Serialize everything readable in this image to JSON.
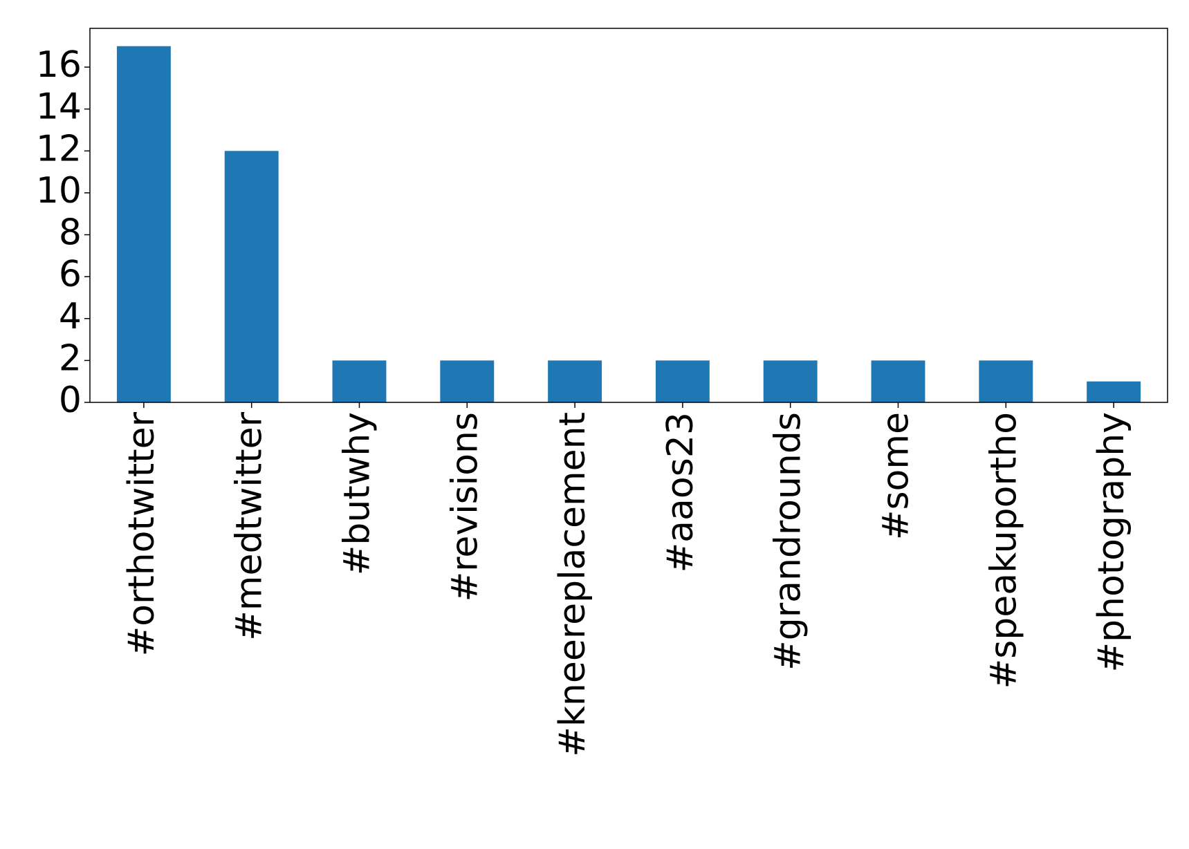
{
  "chart_data": {
    "type": "bar",
    "categories": [
      "#orthotwitter",
      "#medtwitter",
      "#butwhy",
      "#revisions",
      "#kneereplacement",
      "#aaos23",
      "#grandrounds",
      "#some",
      "#speakuportho",
      "#photography"
    ],
    "values": [
      17,
      12,
      2,
      2,
      2,
      2,
      2,
      2,
      2,
      1
    ],
    "color": "#1f77b4",
    "ylim": [
      0,
      17.85
    ],
    "yticks": [
      0,
      2,
      4,
      6,
      8,
      10,
      12,
      14,
      16
    ],
    "grid": false
  }
}
